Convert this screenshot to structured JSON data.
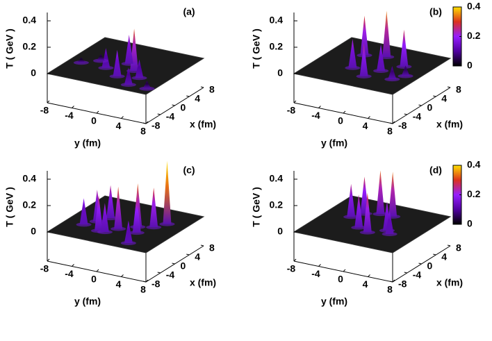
{
  "chart_data": [
    {
      "type": "surface3d",
      "title": "(a)",
      "zlabel": "T ( GeV )",
      "xlabel": "x (fm)",
      "ylabel": "y (fm)",
      "xlim": [
        -8,
        8
      ],
      "ylim": [
        -8,
        8
      ],
      "zlim": [
        0,
        0.4
      ],
      "xticks": [
        -8,
        -4,
        0,
        4,
        8
      ],
      "yticks": [
        -8,
        -4,
        0,
        4,
        8
      ],
      "zticks": [
        0,
        0.2,
        0.4
      ],
      "x": [
        -1,
        1,
        -2,
        -4,
        -3,
        -6,
        -6,
        -2,
        0
      ],
      "y": [
        2,
        0,
        -2,
        1,
        4,
        4,
        7,
        -6,
        -4
      ],
      "values": [
        0.32,
        0.22,
        0.15,
        0.2,
        0.14,
        0.13,
        0.06,
        0.04,
        0.05
      ],
      "colorbar": false
    },
    {
      "type": "surface3d",
      "title": "(b)",
      "zlabel": "T ( GeV )",
      "xlabel": "x (fm)",
      "ylabel": "y (fm)",
      "xlim": [
        -8,
        8
      ],
      "ylim": [
        -8,
        8
      ],
      "zlim": [
        0,
        0.4
      ],
      "xticks": [
        -8,
        -4,
        0,
        4,
        8
      ],
      "yticks": [
        -8,
        -4,
        0,
        4,
        8
      ],
      "zticks": [
        0,
        0.2,
        0.4
      ],
      "x": [
        3,
        4,
        2,
        -2,
        -1,
        -4,
        -1,
        -3
      ],
      "y": [
        -3,
        0,
        4,
        -2,
        2,
        1,
        6,
        5
      ],
      "values": [
        0.3,
        0.35,
        0.28,
        0.22,
        0.2,
        0.25,
        0.08,
        0.1
      ],
      "colorbar": true,
      "cblim": [
        0,
        0.4
      ],
      "cbticks": [
        0,
        0.2,
        0.4
      ]
    },
    {
      "type": "surface3d",
      "title": "(c)",
      "zlabel": "T ( GeV )",
      "xlabel": "x (fm)",
      "ylabel": "y (fm)",
      "xlim": [
        -8,
        8
      ],
      "ylim": [
        -8,
        8
      ],
      "zlim": [
        0,
        0.4
      ],
      "xticks": [
        -8,
        -4,
        0,
        4,
        8
      ],
      "yticks": [
        -8,
        -4,
        0,
        4,
        8
      ],
      "zticks": [
        0,
        0.2,
        0.4
      ],
      "x": [
        3,
        1,
        0,
        -2,
        1,
        -1,
        -3,
        -4,
        -2,
        -6,
        -4
      ],
      "y": [
        5,
        4,
        2,
        3,
        -3,
        -4,
        -5,
        -2,
        0,
        4,
        -1
      ],
      "values": [
        0.48,
        0.3,
        0.33,
        0.28,
        0.25,
        0.24,
        0.2,
        0.27,
        0.32,
        0.17,
        0.22
      ],
      "colorbar": false
    },
    {
      "type": "surface3d",
      "title": "(d)",
      "zlabel": "T ( GeV )",
      "xlabel": "x (fm)",
      "ylabel": "y (fm)",
      "xlim": [
        -8,
        8
      ],
      "ylim": [
        -8,
        8
      ],
      "zlim": [
        0,
        0.4
      ],
      "xticks": [
        -8,
        -4,
        0,
        4,
        8
      ],
      "yticks": [
        -8,
        -4,
        0,
        4,
        8
      ],
      "zticks": [
        0,
        0.2,
        0.4
      ],
      "x": [
        4,
        4,
        3,
        1,
        -2,
        -1,
        -3,
        -2
      ],
      "y": [
        -1,
        1,
        -3,
        -4,
        -1,
        3,
        1,
        4
      ],
      "values": [
        0.33,
        0.34,
        0.28,
        0.25,
        0.25,
        0.22,
        0.3,
        0.18
      ],
      "colorbar": true,
      "cblim": [
        0,
        0.4
      ],
      "cbticks": [
        0,
        0.2,
        0.4
      ]
    }
  ]
}
